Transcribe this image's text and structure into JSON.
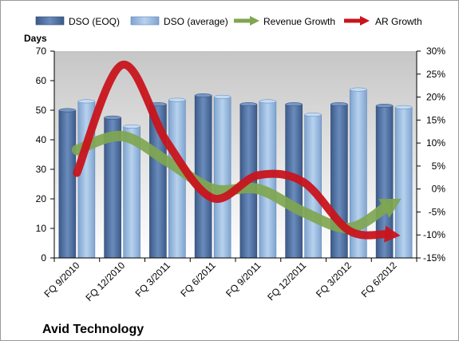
{
  "chart_data": {
    "type": "bar",
    "title": "",
    "company_label": "Avid Technology",
    "ylabel": "Days",
    "ylim": [
      0,
      70
    ],
    "y_ticks": [
      0,
      10,
      20,
      30,
      40,
      50,
      60,
      70
    ],
    "y2lim": [
      -15,
      30
    ],
    "y2_ticks": [
      "-15%",
      "-10%",
      "-5%",
      "0%",
      "5%",
      "10%",
      "15%",
      "20%",
      "25%",
      "30%"
    ],
    "y2_tick_values": [
      -15,
      -10,
      -5,
      0,
      5,
      10,
      15,
      20,
      25,
      30
    ],
    "categories": [
      "FQ 9/2010",
      "FQ 12/2010",
      "FQ 3/2011",
      "FQ 6/2011",
      "FQ 9/2011",
      "FQ 12/2011",
      "FQ 3/2012",
      "FQ 6/2012"
    ],
    "series": [
      {
        "name": "DSO (EOQ)",
        "kind": "bar",
        "values": [
          50,
          47.5,
          52,
          55,
          52,
          52,
          52,
          51.5
        ]
      },
      {
        "name": "DSO (average)",
        "kind": "bar",
        "values": [
          53,
          44.5,
          53.5,
          54.5,
          53,
          48.5,
          57,
          51
        ]
      },
      {
        "name": "Revenue Growth",
        "kind": "arrow-line",
        "axis": "right",
        "values": [
          8.5,
          11.5,
          6,
          0,
          0,
          -5,
          -8.5,
          -3
        ]
      },
      {
        "name": "AR Growth",
        "kind": "arrow-line",
        "axis": "right",
        "values": [
          3.5,
          27,
          10,
          -2,
          3,
          1.5,
          -9,
          -10
        ]
      }
    ],
    "legend_position": "top",
    "grid": false,
    "colors": {
      "bar_eoq": "#4f6f9e",
      "bar_avg": "#93b6de",
      "revenue": "#7fa650",
      "ar": "#c8141c",
      "plot_bg_top": "#c9c9c9",
      "plot_bg_bottom": "#ffffff"
    }
  }
}
